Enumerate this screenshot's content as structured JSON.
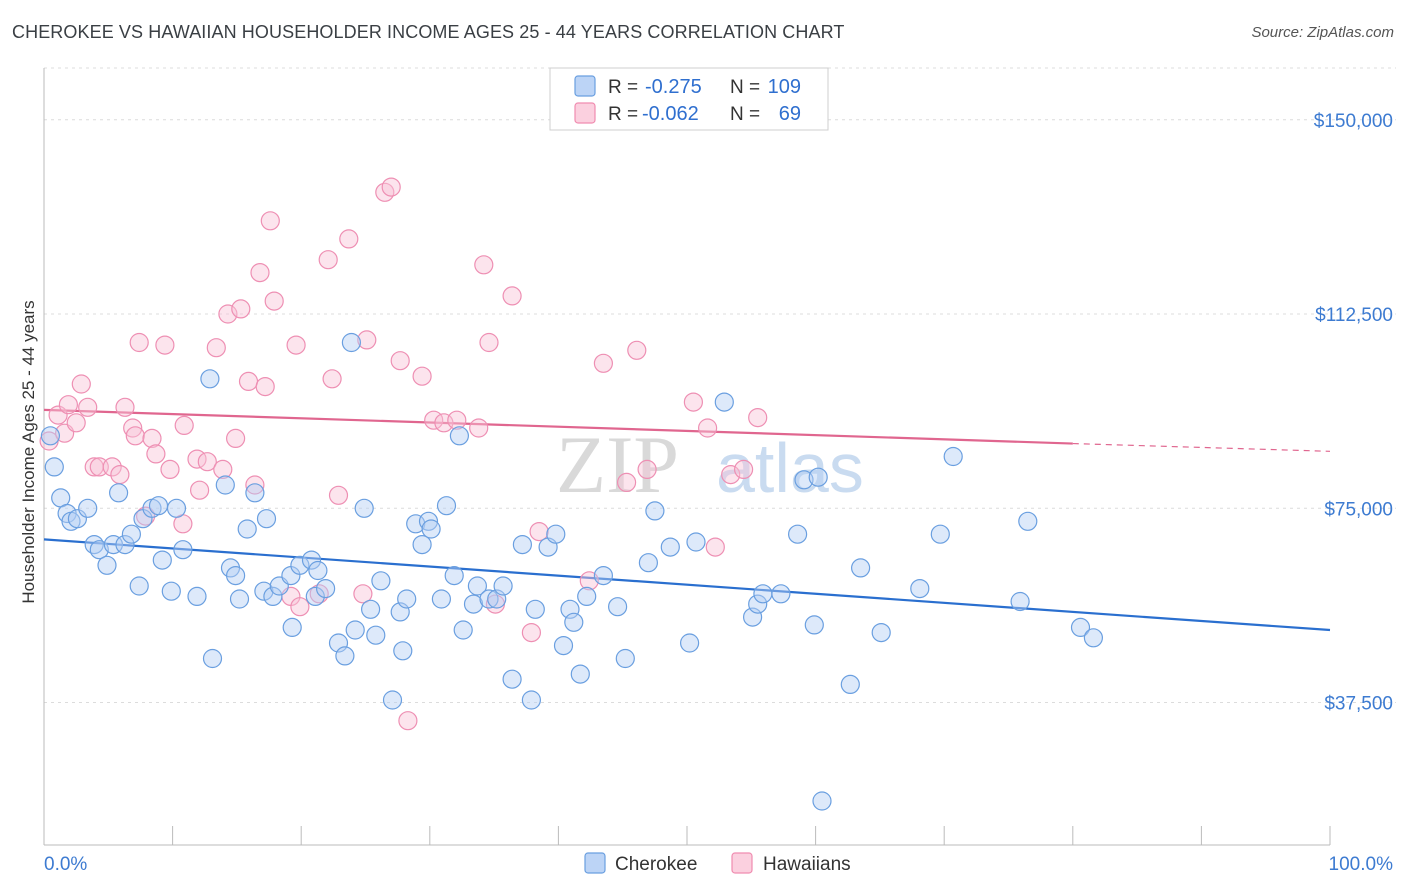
{
  "header": {
    "title": "CHEROKEE VS HAWAIIAN HOUSEHOLDER INCOME AGES 25 - 44 YEARS CORRELATION CHART",
    "source": "Source: ZipAtlas.com"
  },
  "watermark": {
    "part1": "ZIP",
    "part2": "atlas"
  },
  "legend_top": {
    "rows": [
      {
        "r_label": "R =",
        "r_value": "-0.275",
        "n_label": "N =",
        "n_value": "109"
      },
      {
        "r_label": "R =",
        "r_value": "-0.062",
        "n_label": "N =",
        "n_value": "69"
      }
    ]
  },
  "legend_bottom": {
    "items": [
      "Cherokee",
      "Hawaiians"
    ]
  },
  "chart_data": {
    "type": "scatter",
    "title": "CHEROKEE VS HAWAIIAN HOUSEHOLDER INCOME AGES 25 - 44 YEARS CORRELATION CHART",
    "xlabel": "",
    "ylabel": "Householder Income Ages 25 - 44 years",
    "xlim": [
      0,
      100
    ],
    "ylim": [
      10000,
      160000
    ],
    "x_tick_labels": [
      "0.0%",
      "100.0%"
    ],
    "y_ticks": [
      37500,
      75000,
      112500,
      150000
    ],
    "y_tick_labels": [
      "$37,500",
      "$75,000",
      "$112,500",
      "$150,000"
    ],
    "grid": true,
    "legend_placement": "top-center",
    "colors": {
      "cherokee": "#6a9fe0",
      "cherokee_line": "#2a6fcf",
      "hawaiians": "#f08cb0",
      "hawaiians_line": "#e0668f"
    },
    "series": [
      {
        "name": "Cherokee",
        "trend": {
          "x": [
            0,
            100
          ],
          "y": [
            69000,
            51500
          ]
        },
        "points": [
          [
            0.5,
            89000
          ],
          [
            0.8,
            83000
          ],
          [
            1.3,
            77000
          ],
          [
            1.8,
            74000
          ],
          [
            2.1,
            72500
          ],
          [
            2.6,
            73000
          ],
          [
            3.4,
            75000
          ],
          [
            3.9,
            68000
          ],
          [
            4.3,
            67000
          ],
          [
            4.9,
            64000
          ],
          [
            5.4,
            68000
          ],
          [
            5.8,
            78000
          ],
          [
            6.3,
            68000
          ],
          [
            6.8,
            70000
          ],
          [
            7.4,
            60000
          ],
          [
            7.7,
            73000
          ],
          [
            8.4,
            75000
          ],
          [
            8.9,
            75500
          ],
          [
            9.2,
            65000
          ],
          [
            9.9,
            59000
          ],
          [
            10.3,
            75000
          ],
          [
            10.8,
            67000
          ],
          [
            11.9,
            58000
          ],
          [
            12.9,
            100000
          ],
          [
            13.1,
            46000
          ],
          [
            14.1,
            79500
          ],
          [
            14.5,
            63500
          ],
          [
            14.9,
            62000
          ],
          [
            15.2,
            57500
          ],
          [
            15.8,
            71000
          ],
          [
            16.4,
            78000
          ],
          [
            17.1,
            59000
          ],
          [
            17.3,
            73000
          ],
          [
            17.8,
            58000
          ],
          [
            18.3,
            60000
          ],
          [
            19.2,
            62000
          ],
          [
            19.3,
            52000
          ],
          [
            19.9,
            64000
          ],
          [
            20.8,
            65000
          ],
          [
            21.1,
            58000
          ],
          [
            21.3,
            63000
          ],
          [
            21.9,
            59500
          ],
          [
            22.9,
            49000
          ],
          [
            23.4,
            46500
          ],
          [
            23.9,
            107000
          ],
          [
            24.2,
            51500
          ],
          [
            24.9,
            75000
          ],
          [
            25.4,
            55500
          ],
          [
            25.8,
            50500
          ],
          [
            26.2,
            61000
          ],
          [
            27.1,
            38000
          ],
          [
            27.7,
            55000
          ],
          [
            27.9,
            47500
          ],
          [
            28.2,
            57500
          ],
          [
            28.9,
            72000
          ],
          [
            29.4,
            68000
          ],
          [
            29.9,
            72500
          ],
          [
            30.1,
            71000
          ],
          [
            30.9,
            57500
          ],
          [
            31.3,
            75500
          ],
          [
            31.9,
            62000
          ],
          [
            32.3,
            89000
          ],
          [
            32.6,
            51500
          ],
          [
            33.4,
            56500
          ],
          [
            33.7,
            60000
          ],
          [
            34.6,
            57500
          ],
          [
            35.2,
            57500
          ],
          [
            35.7,
            60000
          ],
          [
            36.4,
            42000
          ],
          [
            37.2,
            68000
          ],
          [
            37.9,
            38000
          ],
          [
            38.2,
            55500
          ],
          [
            39.2,
            67500
          ],
          [
            39.8,
            70000
          ],
          [
            40.4,
            48500
          ],
          [
            40.9,
            55500
          ],
          [
            41.2,
            53000
          ],
          [
            41.7,
            43000
          ],
          [
            42.2,
            58000
          ],
          [
            43.5,
            62000
          ],
          [
            45.2,
            46000
          ],
          [
            47.0,
            64500
          ],
          [
            47.5,
            74500
          ],
          [
            48.7,
            67500
          ],
          [
            50.2,
            49000
          ],
          [
            50.7,
            68500
          ],
          [
            52.9,
            95500
          ],
          [
            55.1,
            54000
          ],
          [
            55.5,
            56500
          ],
          [
            55.9,
            58500
          ],
          [
            57.3,
            58500
          ],
          [
            58.6,
            70000
          ],
          [
            59.1,
            80500
          ],
          [
            59.9,
            52500
          ],
          [
            60.2,
            81000
          ],
          [
            62.7,
            41000
          ],
          [
            63.5,
            63500
          ],
          [
            65.1,
            51000
          ],
          [
            68.1,
            59500
          ],
          [
            69.7,
            70000
          ],
          [
            70.7,
            85000
          ],
          [
            75.9,
            57000
          ],
          [
            76.5,
            72500
          ],
          [
            80.6,
            52000
          ],
          [
            81.6,
            50000
          ],
          [
            60.5,
            18500
          ],
          [
            44.6,
            56000
          ]
        ]
      },
      {
        "name": "Hawaiians",
        "trend": {
          "x": [
            0,
            80
          ],
          "y": [
            94000,
            87500
          ]
        },
        "trend_dashed": {
          "x": [
            80,
            100
          ],
          "y": [
            87500,
            86000
          ]
        },
        "points": [
          [
            0.4,
            88000
          ],
          [
            1.1,
            93000
          ],
          [
            1.6,
            89500
          ],
          [
            1.9,
            95000
          ],
          [
            2.5,
            91500
          ],
          [
            2.9,
            99000
          ],
          [
            3.4,
            94500
          ],
          [
            3.9,
            83000
          ],
          [
            4.3,
            83000
          ],
          [
            5.3,
            83000
          ],
          [
            5.9,
            81500
          ],
          [
            6.3,
            94500
          ],
          [
            6.9,
            90500
          ],
          [
            7.1,
            89000
          ],
          [
            7.4,
            107000
          ],
          [
            7.9,
            73500
          ],
          [
            8.4,
            88500
          ],
          [
            8.7,
            85500
          ],
          [
            9.4,
            106500
          ],
          [
            9.8,
            82500
          ],
          [
            10.8,
            72000
          ],
          [
            10.9,
            91000
          ],
          [
            11.9,
            84500
          ],
          [
            12.1,
            78500
          ],
          [
            12.7,
            84000
          ],
          [
            13.4,
            106000
          ],
          [
            13.9,
            82500
          ],
          [
            14.3,
            112500
          ],
          [
            14.9,
            88500
          ],
          [
            15.3,
            113500
          ],
          [
            15.9,
            99500
          ],
          [
            16.4,
            79500
          ],
          [
            16.8,
            120500
          ],
          [
            17.2,
            98500
          ],
          [
            17.6,
            130500
          ],
          [
            17.9,
            115000
          ],
          [
            19.2,
            58000
          ],
          [
            19.6,
            106500
          ],
          [
            19.9,
            56000
          ],
          [
            21.4,
            58500
          ],
          [
            22.1,
            123000
          ],
          [
            22.4,
            100000
          ],
          [
            22.9,
            77500
          ],
          [
            23.7,
            127000
          ],
          [
            24.8,
            58500
          ],
          [
            25.1,
            107500
          ],
          [
            26.5,
            136000
          ],
          [
            27.0,
            137000
          ],
          [
            27.7,
            103500
          ],
          [
            28.3,
            34000
          ],
          [
            29.4,
            100500
          ],
          [
            30.3,
            92000
          ],
          [
            31.1,
            91500
          ],
          [
            32.1,
            92000
          ],
          [
            33.8,
            90500
          ],
          [
            34.2,
            122000
          ],
          [
            34.6,
            107000
          ],
          [
            35.1,
            56500
          ],
          [
            36.4,
            116000
          ],
          [
            37.9,
            51000
          ],
          [
            38.5,
            70500
          ],
          [
            42.4,
            61000
          ],
          [
            43.5,
            103000
          ],
          [
            45.3,
            80000
          ],
          [
            46.1,
            105500
          ],
          [
            46.9,
            82500
          ],
          [
            50.5,
            95500
          ],
          [
            51.6,
            90500
          ],
          [
            52.2,
            67500
          ],
          [
            53.4,
            81500
          ],
          [
            54.4,
            82500
          ],
          [
            55.5,
            92500
          ]
        ]
      }
    ]
  }
}
